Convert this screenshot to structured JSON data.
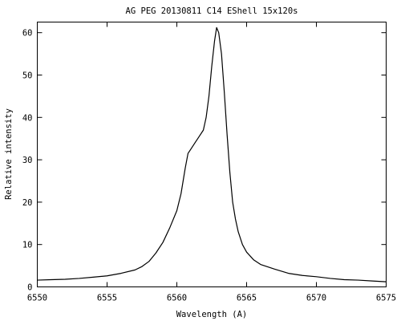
{
  "chart_data": {
    "type": "line",
    "title": "AG PEG 20130811  C14 EShell  15x120s",
    "xlabel": "Wavelength (A)",
    "ylabel": "Relative intensity",
    "xlim": [
      6550,
      6575
    ],
    "ylim": [
      0,
      62.5
    ],
    "x_ticks": [
      6550,
      6555,
      6560,
      6565,
      6570,
      6575
    ],
    "x_tick_labels": [
      "6550",
      "6555",
      "6560",
      "6565",
      "6570",
      "6575"
    ],
    "y_ticks": [
      0,
      10,
      20,
      30,
      40,
      50,
      60
    ],
    "y_tick_labels": [
      "0",
      "10",
      "20",
      "30",
      "40",
      "50",
      "60"
    ],
    "grid": false,
    "legend": "none",
    "line_color": "#000000",
    "series": [
      {
        "x": [
          6550.0,
          6551.0,
          6552.0,
          6553.0,
          6554.0,
          6555.0,
          6556.0,
          6557.0,
          6557.5,
          6558.0,
          6558.5,
          6559.0,
          6559.5,
          6560.0,
          6560.3,
          6560.6,
          6560.8,
          6561.0,
          6561.3,
          6561.6,
          6561.9,
          6562.1,
          6562.3,
          6562.5,
          6562.7,
          6562.85,
          6563.0,
          6563.2,
          6563.4,
          6563.6,
          6563.8,
          6564.0,
          6564.2,
          6564.4,
          6564.7,
          6565.0,
          6565.5,
          6566.0,
          6567.0,
          6568.0,
          6569.0,
          6570.0,
          6571.0,
          6572.0,
          6573.0,
          6574.0,
          6575.0
        ],
        "y": [
          1.6,
          1.7,
          1.8,
          2.0,
          2.3,
          2.6,
          3.2,
          4.0,
          4.8,
          6.0,
          8.0,
          10.5,
          14.0,
          18.0,
          22.0,
          28.0,
          31.5,
          32.5,
          34.0,
          35.5,
          37.0,
          40.0,
          45.0,
          52.0,
          58.0,
          61.2,
          60.0,
          55.0,
          46.0,
          36.0,
          27.0,
          20.0,
          16.0,
          13.0,
          10.0,
          8.2,
          6.4,
          5.3,
          4.2,
          3.2,
          2.7,
          2.4,
          2.0,
          1.7,
          1.6,
          1.4,
          1.2
        ]
      }
    ]
  }
}
